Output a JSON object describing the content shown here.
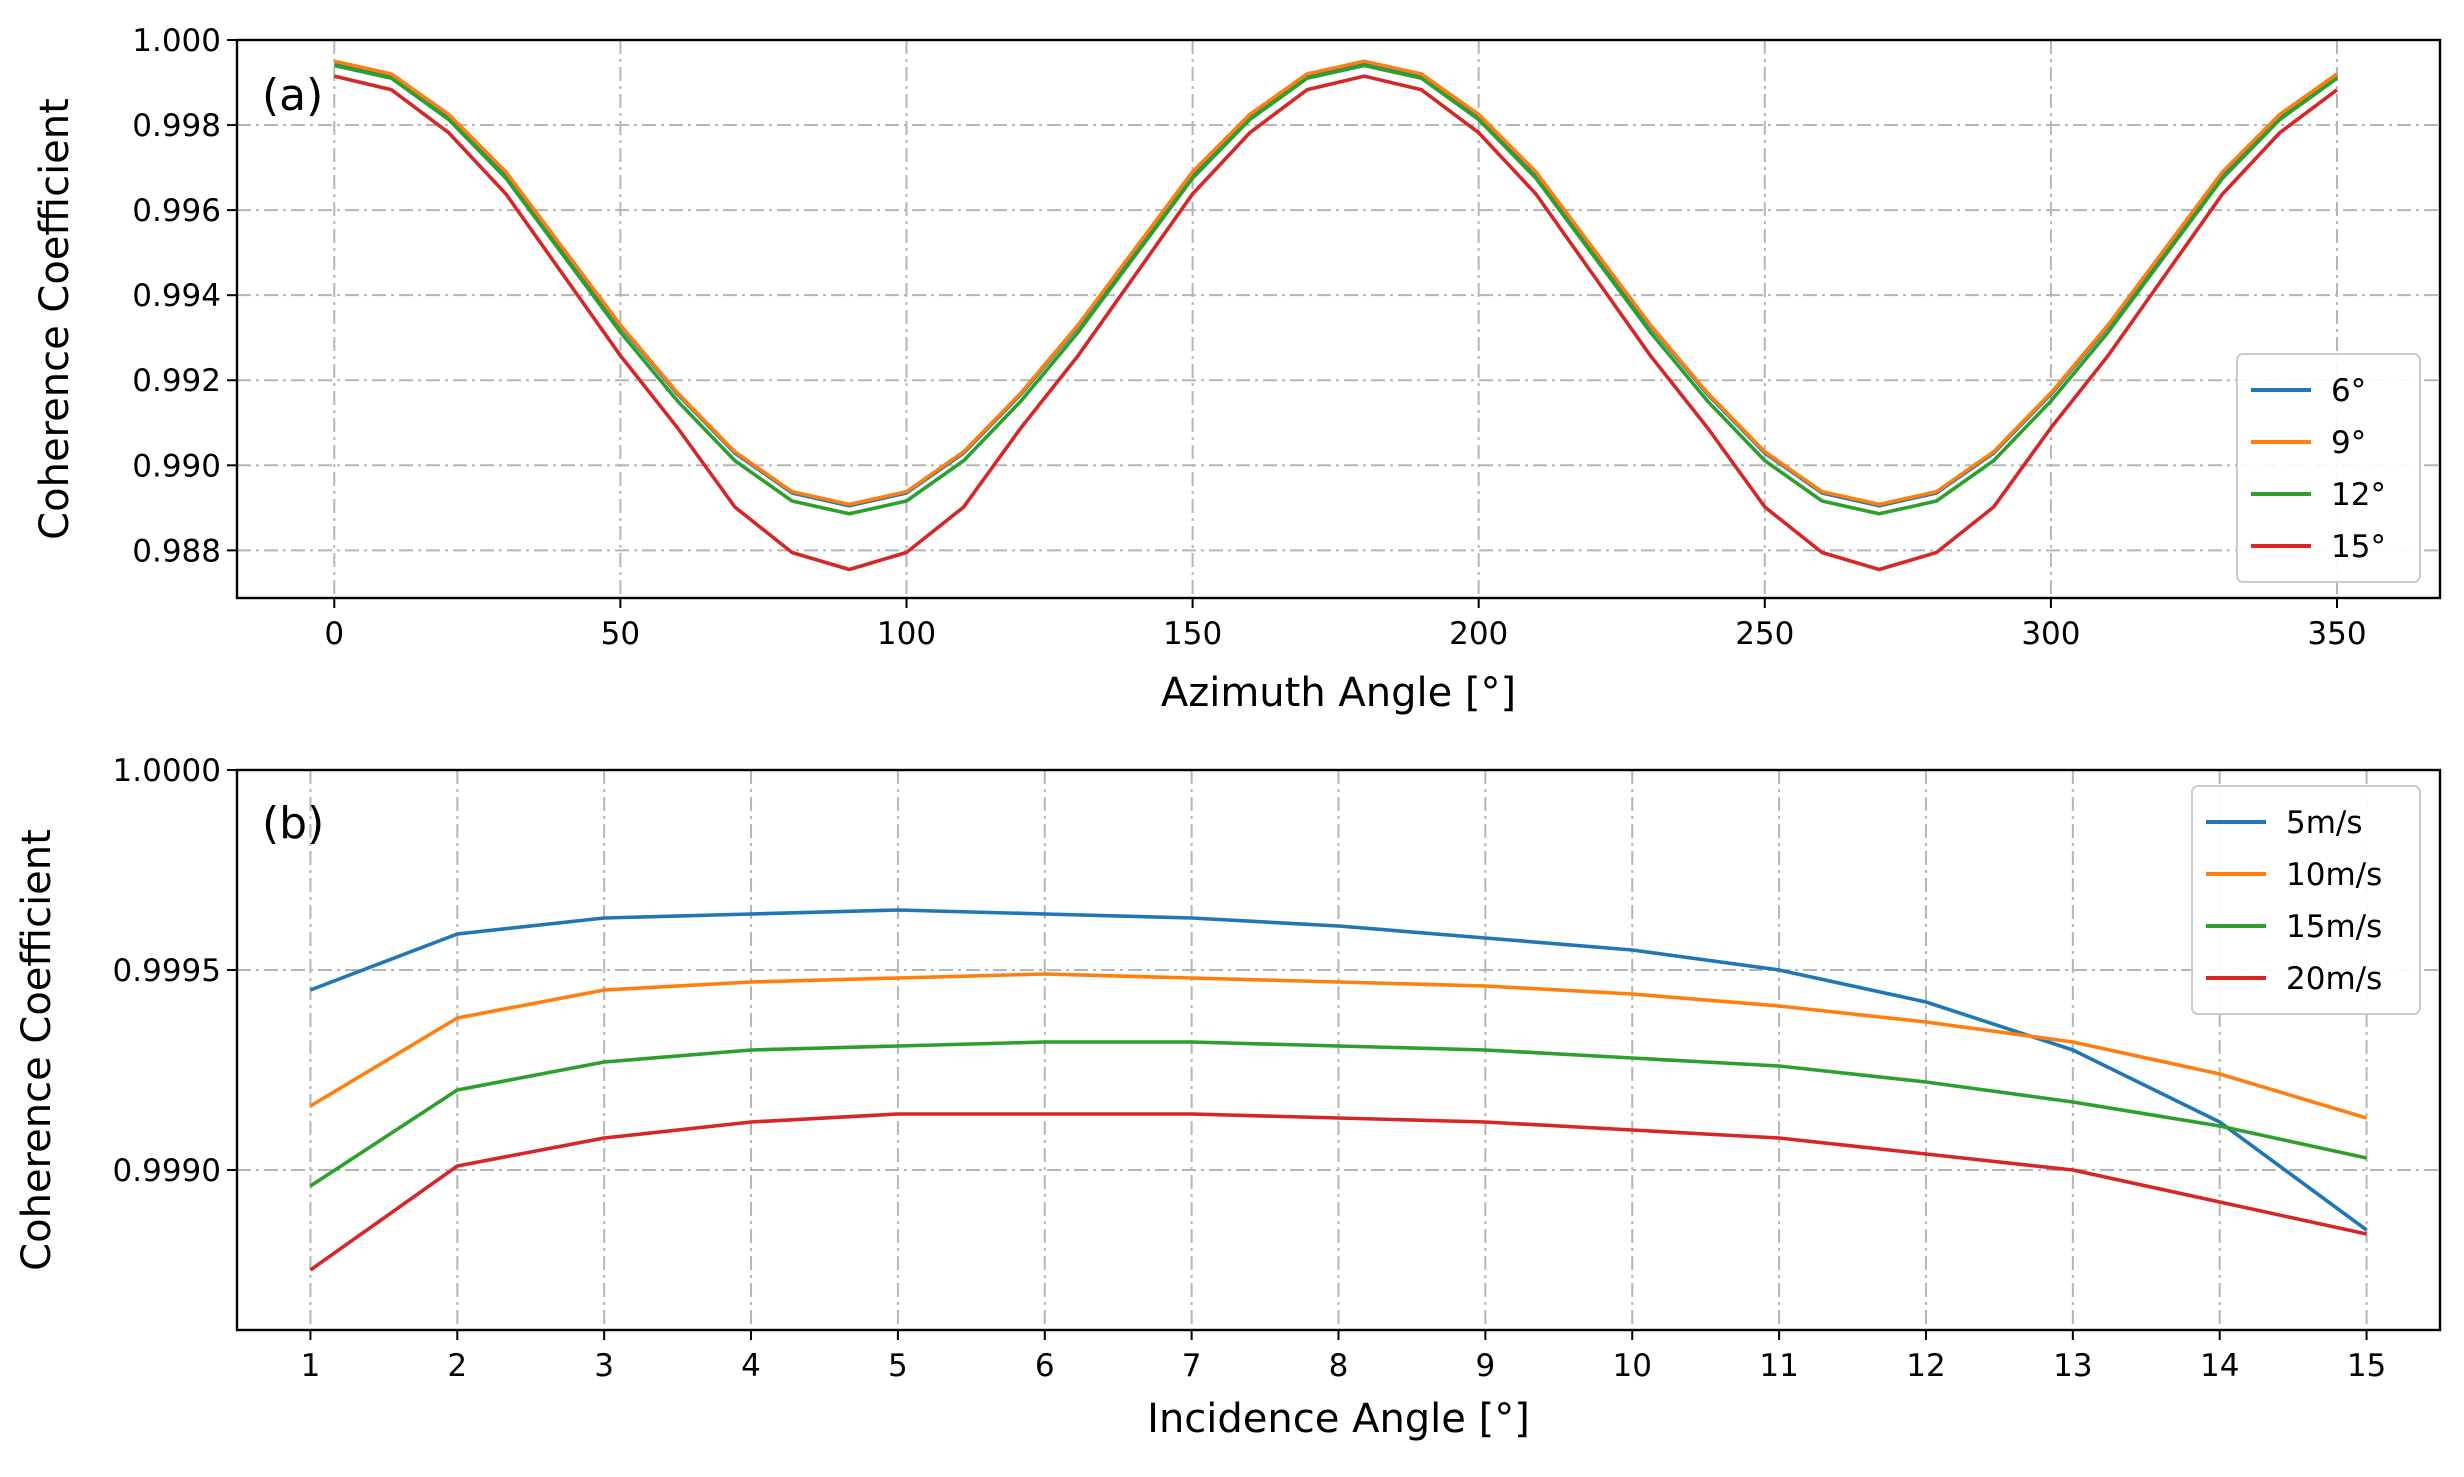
{
  "chart_data": [
    {
      "type": "line",
      "panel_label": "(a)",
      "xlabel": "Azimuth Angle [°]",
      "ylabel": "Coherence Coefficient",
      "xlim": [
        -17,
        368
      ],
      "ylim": [
        0.98688,
        1.0
      ],
      "xticks": [
        0,
        50,
        100,
        150,
        200,
        250,
        300,
        350
      ],
      "xtick_labels": [
        "0",
        "50",
        "100",
        "150",
        "200",
        "250",
        "300",
        "350"
      ],
      "yticks": [
        0.988,
        0.99,
        0.992,
        0.994,
        0.996,
        0.998,
        1.0
      ],
      "ytick_labels": [
        "0.988",
        "0.990",
        "0.992",
        "0.994",
        "0.996",
        "0.998",
        "1.000"
      ],
      "grid": true,
      "legend_position": "lower-right",
      "x": [
        0,
        10,
        20,
        30,
        40,
        50,
        60,
        70,
        80,
        90,
        100,
        110,
        120,
        130,
        140,
        150,
        160,
        170,
        180,
        190,
        200,
        210,
        220,
        230,
        240,
        250,
        260,
        270,
        280,
        290,
        300,
        310,
        320,
        330,
        340,
        350
      ],
      "series": [
        {
          "name": "6°",
          "color": "#1f77b4",
          "values": [
            0.99945,
            0.99915,
            0.9982,
            0.99685,
            0.99506,
            0.99327,
            0.99167,
            0.99029,
            0.98935,
            0.98905,
            0.98935,
            0.99029,
            0.99167,
            0.99327,
            0.99506,
            0.99685,
            0.9982,
            0.99915,
            0.99945,
            0.99915,
            0.9982,
            0.99685,
            0.99506,
            0.99327,
            0.99167,
            0.99029,
            0.98935,
            0.98905,
            0.98935,
            0.99029,
            0.99167,
            0.99327,
            0.99506,
            0.99685,
            0.9982,
            0.99915
          ]
        },
        {
          "name": "9°",
          "color": "#ff7f0e",
          "values": [
            0.9995,
            0.9992,
            0.99825,
            0.9969,
            0.9951,
            0.9933,
            0.9917,
            0.99032,
            0.98938,
            0.98908,
            0.98938,
            0.99032,
            0.9917,
            0.9933,
            0.9951,
            0.9969,
            0.99825,
            0.9992,
            0.9995,
            0.9992,
            0.99825,
            0.9969,
            0.9951,
            0.9933,
            0.9917,
            0.99032,
            0.98938,
            0.98908,
            0.98938,
            0.99032,
            0.9917,
            0.9933,
            0.9951,
            0.9969,
            0.99825,
            0.9992
          ]
        },
        {
          "name": "12°",
          "color": "#2ca02c",
          "values": [
            0.9994,
            0.9991,
            0.99813,
            0.99675,
            0.99494,
            0.99313,
            0.99151,
            0.99011,
            0.98916,
            0.98886,
            0.98916,
            0.99011,
            0.99151,
            0.99313,
            0.99494,
            0.99675,
            0.99813,
            0.9991,
            0.9994,
            0.9991,
            0.99813,
            0.99675,
            0.99494,
            0.99313,
            0.99151,
            0.99011,
            0.98916,
            0.98886,
            0.98916,
            0.99011,
            0.99151,
            0.99313,
            0.99494,
            0.99675,
            0.99813,
            0.9991
          ]
        },
        {
          "name": "15°",
          "color": "#d62728",
          "values": [
            0.99915,
            0.99883,
            0.99782,
            0.99638,
            0.99448,
            0.99258,
            0.99088,
            0.98902,
            0.98795,
            0.98755,
            0.98795,
            0.98902,
            0.99088,
            0.99258,
            0.99448,
            0.99638,
            0.99782,
            0.99883,
            0.99915,
            0.99883,
            0.99782,
            0.99638,
            0.99448,
            0.99258,
            0.99088,
            0.98902,
            0.98795,
            0.98755,
            0.98795,
            0.98902,
            0.99088,
            0.99258,
            0.99448,
            0.99638,
            0.99782,
            0.99883
          ]
        }
      ]
    },
    {
      "type": "line",
      "panel_label": "(b)",
      "xlabel": "Incidence Angle [°]",
      "ylabel": "Coherence Coefficient",
      "xlim": [
        0.5,
        15.5
      ],
      "ylim": [
        0.9986,
        1.0
      ],
      "xticks": [
        1,
        2,
        3,
        4,
        5,
        6,
        7,
        8,
        9,
        10,
        11,
        12,
        13,
        14,
        15
      ],
      "xtick_labels": [
        "1",
        "2",
        "3",
        "4",
        "5",
        "6",
        "7",
        "8",
        "9",
        "10",
        "11",
        "12",
        "13",
        "14",
        "15"
      ],
      "yticks": [
        0.999,
        0.9995,
        1.0
      ],
      "ytick_labels": [
        "0.9990",
        "0.9995",
        "1.0000"
      ],
      "grid": true,
      "legend_position": "top-right",
      "x": [
        1,
        2,
        3,
        4,
        5,
        6,
        7,
        8,
        9,
        10,
        11,
        12,
        13,
        14,
        15
      ],
      "series": [
        {
          "name": "5m/s",
          "color": "#1f77b4",
          "values": [
            0.99945,
            0.99959,
            0.99963,
            0.99964,
            0.99965,
            0.99964,
            0.99963,
            0.99961,
            0.99958,
            0.99955,
            0.9995,
            0.99942,
            0.9993,
            0.99912,
            0.99885
          ]
        },
        {
          "name": "10m/s",
          "color": "#ff7f0e",
          "values": [
            0.99916,
            0.99938,
            0.99945,
            0.99947,
            0.99948,
            0.99949,
            0.99948,
            0.99947,
            0.99946,
            0.99944,
            0.99941,
            0.99937,
            0.99932,
            0.99924,
            0.99913
          ]
        },
        {
          "name": "15m/s",
          "color": "#2ca02c",
          "values": [
            0.99896,
            0.9992,
            0.99927,
            0.9993,
            0.99931,
            0.99932,
            0.99932,
            0.99931,
            0.9993,
            0.99928,
            0.99926,
            0.99922,
            0.99917,
            0.99911,
            0.99903
          ]
        },
        {
          "name": "20m/s",
          "color": "#d62728",
          "values": [
            0.99875,
            0.99901,
            0.99908,
            0.99912,
            0.99914,
            0.99914,
            0.99914,
            0.99913,
            0.99912,
            0.9991,
            0.99908,
            0.99904,
            0.999,
            0.99892,
            0.99884
          ]
        }
      ]
    }
  ]
}
